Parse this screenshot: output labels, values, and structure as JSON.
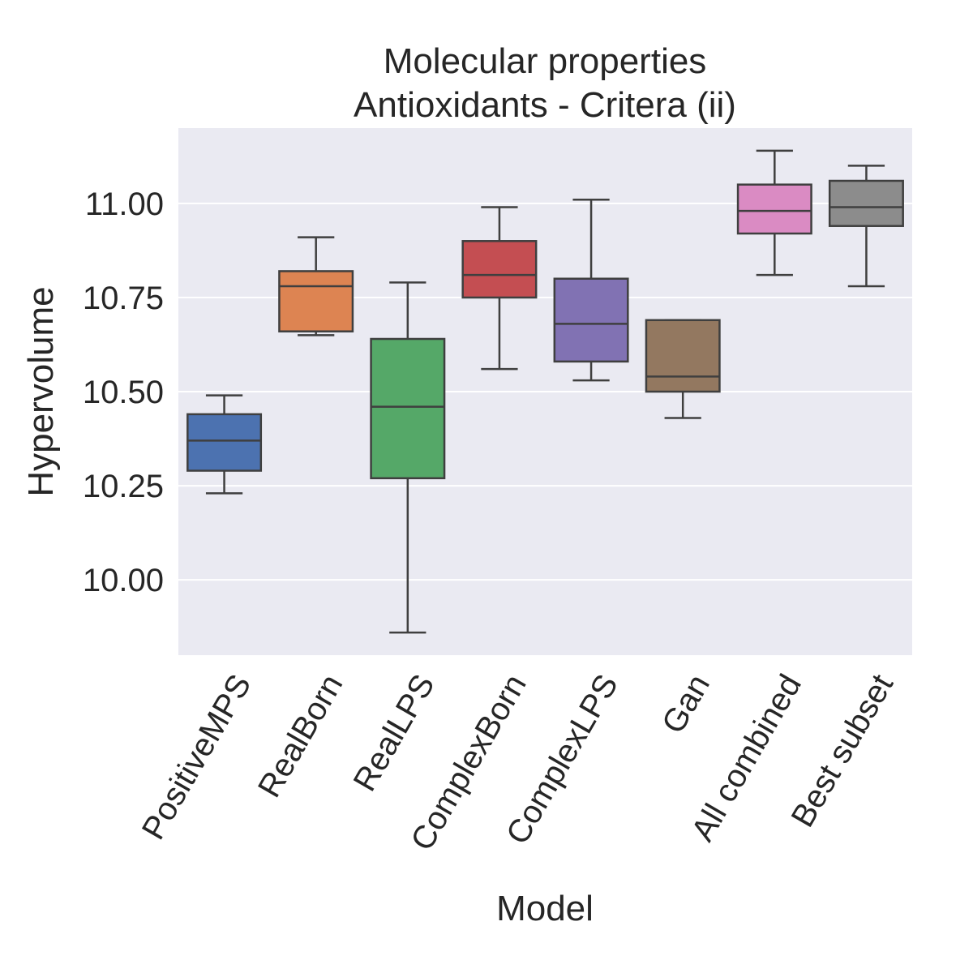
{
  "chart_data": {
    "type": "box",
    "title": "Molecular properties",
    "subtitle": "Antioxidants - Critera (ii)",
    "xlabel": "Model",
    "ylabel": "Hypervolume",
    "ylim": [
      9.8,
      11.2
    ],
    "yticks": [
      10.0,
      10.25,
      10.5,
      10.75,
      11.0
    ],
    "ytick_labels": [
      "10.00",
      "10.25",
      "10.50",
      "10.75",
      "11.00"
    ],
    "grid": true,
    "background": "#eaeaf2",
    "categories": [
      "PositiveMPS",
      "RealBorn",
      "RealLPS",
      "ComplexBorn",
      "ComplexLPS",
      "Gan",
      "All combined",
      "Best subset"
    ],
    "boxes": [
      {
        "category": "PositiveMPS",
        "color": "#4c72b0",
        "whisker_low": 10.23,
        "q1": 10.29,
        "median": 10.37,
        "q3": 10.44,
        "whisker_high": 10.49
      },
      {
        "category": "RealBorn",
        "color": "#dd8452",
        "whisker_low": 10.65,
        "q1": 10.66,
        "median": 10.78,
        "q3": 10.82,
        "whisker_high": 10.91
      },
      {
        "category": "RealLPS",
        "color": "#55a868",
        "whisker_low": 9.86,
        "q1": 10.27,
        "median": 10.46,
        "q3": 10.64,
        "whisker_high": 10.79
      },
      {
        "category": "ComplexBorn",
        "color": "#c44e52",
        "whisker_low": 10.56,
        "q1": 10.75,
        "median": 10.81,
        "q3": 10.9,
        "whisker_high": 10.99
      },
      {
        "category": "ComplexLPS",
        "color": "#8172b3",
        "whisker_low": 10.53,
        "q1": 10.58,
        "median": 10.68,
        "q3": 10.8,
        "whisker_high": 11.01
      },
      {
        "category": "Gan",
        "color": "#937860",
        "whisker_low": 10.43,
        "q1": 10.5,
        "median": 10.54,
        "q3": 10.69,
        "whisker_high": 10.69
      },
      {
        "category": "All combined",
        "color": "#da8bc3",
        "whisker_low": 10.81,
        "q1": 10.92,
        "median": 10.98,
        "q3": 11.05,
        "whisker_high": 11.14
      },
      {
        "category": "Best subset",
        "color": "#8c8c8c",
        "whisker_low": 10.78,
        "q1": 10.94,
        "median": 10.99,
        "q3": 11.06,
        "whisker_high": 11.1
      }
    ]
  }
}
